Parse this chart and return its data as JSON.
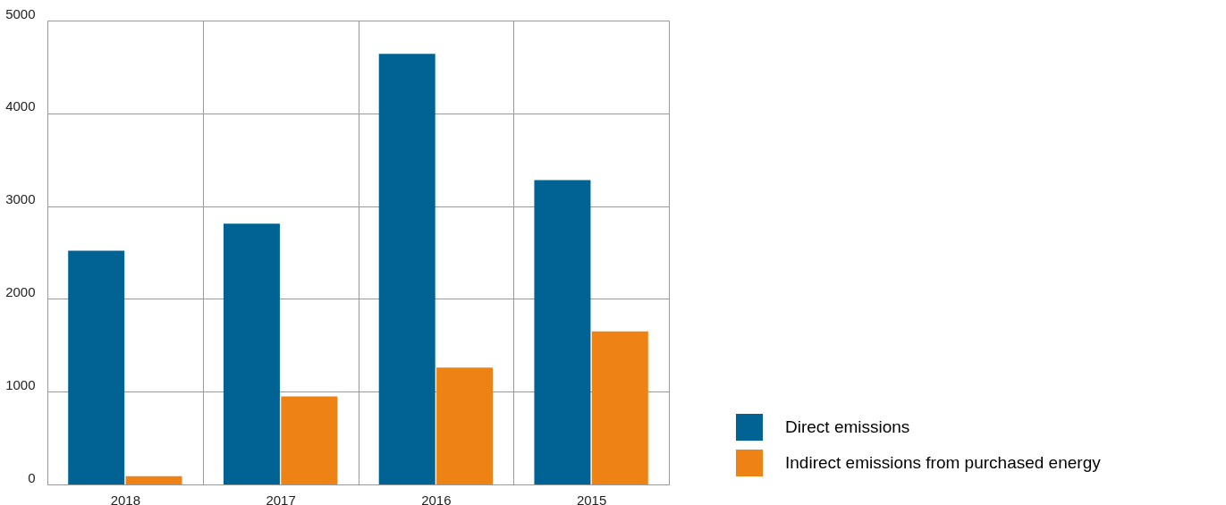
{
  "chart_data": {
    "type": "bar",
    "categories": [
      "2018",
      "2017",
      "2016",
      "2015"
    ],
    "series": [
      {
        "name": "Direct emissions",
        "color": "#006394",
        "values": [
          2520,
          2810,
          4640,
          3280
        ]
      },
      {
        "name": "Indirect emissions from purchased energy",
        "color": "#ef8214",
        "values": [
          90,
          950,
          1260,
          1650
        ]
      }
    ],
    "ylim": [
      0,
      5000
    ],
    "yticks": [
      0,
      1000,
      2000,
      3000,
      4000,
      5000
    ],
    "grid": true,
    "legend": "bottom right"
  }
}
